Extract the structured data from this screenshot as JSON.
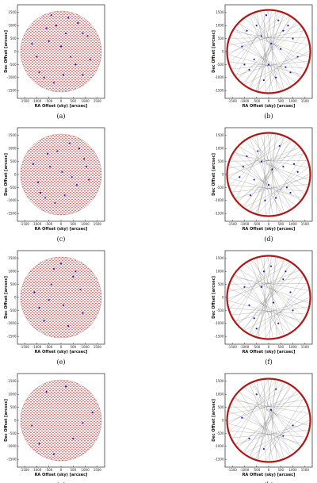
{
  "chart_data": [
    {
      "type": "scatter",
      "caption": "(a)",
      "xlabel": "RA Offset (sky) [arcsec]",
      "ylabel": "Dec Offset [arcsec]",
      "xlim": [
        -1800,
        1800
      ],
      "ylim": [
        -1800,
        1800
      ],
      "xticks": [
        -1500,
        -1000,
        -500,
        0,
        500,
        1000,
        1500
      ],
      "yticks": [
        -1500,
        -1000,
        -500,
        0,
        500,
        1000,
        1500
      ],
      "color": "#1a1acc",
      "style": "grid",
      "x": [
        -1200,
        -900,
        -600,
        -300,
        0,
        300,
        600,
        900,
        1200,
        -1000,
        -500,
        100,
        700,
        1100,
        -700,
        -200,
        400,
        900,
        -400,
        200
      ],
      "y": [
        300,
        -800,
        900,
        -1200,
        200,
        1300,
        -500,
        700,
        -300,
        -200,
        400,
        -900,
        1100,
        600,
        -1000,
        1000,
        -200,
        -900,
        1400,
        700
      ]
    },
    {
      "type": "scatter",
      "caption": "(b)",
      "xlabel": "RA Offset (sky) [arcsec]",
      "ylabel": "Dec Offset [arcsec]",
      "xlim": [
        -1800,
        1800
      ],
      "ylim": [
        -1800,
        1800
      ],
      "xticks": [
        -1500,
        -1000,
        -500,
        0,
        500,
        1000,
        1500
      ],
      "yticks": [
        -1500,
        -1000,
        -500,
        0,
        500,
        1000,
        1500
      ],
      "color": "#1a1acc",
      "style": "ring",
      "x": [
        -1100,
        -800,
        -500,
        -200,
        100,
        400,
        700,
        1000,
        1200,
        -900,
        -300,
        300,
        800,
        -600,
        0,
        500,
        -1000,
        900,
        -100,
        600
      ],
      "y": [
        200,
        -700,
        1000,
        -1100,
        300,
        1200,
        -600,
        500,
        -200,
        800,
        600,
        -1000,
        1000,
        -300,
        -500,
        100,
        -500,
        -800,
        1400,
        800
      ]
    },
    {
      "type": "scatter",
      "caption": "(c)",
      "xlabel": "RA Offset (sky) [arcsec]",
      "ylabel": "Dec Offset [arcsec]",
      "xlim": [
        -1800,
        1800
      ],
      "ylim": [
        -1800,
        1800
      ],
      "xticks": [
        -1500,
        -1000,
        -500,
        0,
        500,
        1000,
        1500
      ],
      "yticks": [
        -1500,
        -1000,
        -500,
        0,
        500,
        1000,
        1500
      ],
      "color": "#1a1acc",
      "style": "grid",
      "x": [
        -1150,
        -850,
        -550,
        -250,
        50,
        350,
        650,
        950,
        1150,
        -950,
        -450,
        150,
        750,
        -650,
        -150,
        450,
        1050
      ],
      "y": [
        400,
        -700,
        800,
        -1100,
        100,
        1200,
        -400,
        600,
        -200,
        -300,
        300,
        -800,
        1000,
        -900,
        900,
        -100,
        300
      ]
    },
    {
      "type": "scatter",
      "caption": "(d)",
      "xlabel": "RA Offset (sky) [arcsec]",
      "ylabel": "Dec Offset [arcsec]",
      "xlim": [
        -1800,
        1800
      ],
      "ylim": [
        -1800,
        1800
      ],
      "xticks": [
        -1500,
        -1000,
        -500,
        0,
        500,
        1000,
        1500
      ],
      "yticks": [
        -1500,
        -1000,
        -500,
        0,
        500,
        1000,
        1500
      ],
      "color": "#1a1acc",
      "style": "ring",
      "x": [
        -1050,
        -750,
        -450,
        -150,
        150,
        450,
        750,
        1050,
        -900,
        -300,
        300,
        900,
        -600,
        0,
        600,
        -1200,
        1200
      ],
      "y": [
        300,
        -800,
        900,
        -1000,
        200,
        1100,
        -500,
        400,
        700,
        500,
        -900,
        -700,
        -200,
        -400,
        300,
        -100,
        100
      ]
    },
    {
      "type": "scatter",
      "caption": "(e)",
      "xlabel": "RA Offset (sky) [arcsec]",
      "ylabel": "Dec Offset [arcsec]",
      "xlim": [
        -1800,
        1800
      ],
      "ylim": [
        -1800,
        1800
      ],
      "xticks": [
        -1500,
        -1000,
        -500,
        0,
        500,
        1000,
        1500
      ],
      "yticks": [
        -1500,
        -1000,
        -500,
        0,
        500,
        1000,
        1500
      ],
      "color": "#1a1acc",
      "style": "grid",
      "x": [
        -1100,
        -700,
        -300,
        100,
        500,
        900,
        -900,
        -400,
        300,
        800,
        -500,
        0,
        600
      ],
      "y": [
        200,
        -900,
        1100,
        -300,
        800,
        -600,
        -400,
        500,
        -1100,
        300,
        -100,
        1300,
        1000
      ]
    },
    {
      "type": "scatter",
      "caption": "(f)",
      "xlabel": "RA Offset (sky) [arcsec]",
      "ylabel": "Dec Offset [arcsec]",
      "xlim": [
        -1800,
        1800
      ],
      "ylim": [
        -1800,
        1800
      ],
      "xticks": [
        -1500,
        -1000,
        -500,
        0,
        500,
        1000,
        1500
      ],
      "yticks": [
        -1500,
        -1000,
        -500,
        0,
        500,
        1000,
        1500
      ],
      "color": "#1a1acc",
      "style": "ring",
      "x": [
        -1000,
        -600,
        -200,
        200,
        600,
        1000,
        -800,
        -300,
        400,
        900,
        -500,
        100,
        700
      ],
      "y": [
        400,
        -800,
        1000,
        -200,
        700,
        -500,
        -300,
        400,
        -1000,
        200,
        -1200,
        1200,
        1000
      ]
    },
    {
      "type": "scatter",
      "caption": "(g)",
      "xlabel": "RA Offset (sky) [arcsec]",
      "ylabel": "Dec Offset [arcsec]",
      "xlim": [
        -1800,
        1800
      ],
      "ylim": [
        -1800,
        1800
      ],
      "xticks": [
        -1500,
        -1000,
        -500,
        0,
        500,
        1000,
        1500
      ],
      "yticks": [
        -1500,
        -1000,
        -500,
        0,
        500,
        1000,
        1500
      ],
      "color": "#1a1acc",
      "style": "grid",
      "x": [
        -1200,
        -600,
        200,
        900,
        -300,
        500,
        1300,
        -900
      ],
      "y": [
        -200,
        1100,
        1300,
        -100,
        -1300,
        -700,
        300,
        -900
      ]
    },
    {
      "type": "scatter",
      "caption": "(h)",
      "xlabel": "RA Offset (sky) [arcsec]",
      "ylabel": "Dec Offset [arcsec]",
      "xlim": [
        -1800,
        1800
      ],
      "ylim": [
        -1800,
        1800
      ],
      "xticks": [
        -1500,
        -1000,
        -500,
        0,
        500,
        1000,
        1500
      ],
      "yticks": [
        -1500,
        -1000,
        -500,
        0,
        500,
        1000,
        1500
      ],
      "color": "#1a1acc",
      "style": "ring",
      "x": [
        -1100,
        -500,
        300,
        1000,
        -200,
        600,
        -800,
        100
      ],
      "y": [
        100,
        1000,
        1200,
        -200,
        -1100,
        -600,
        -700,
        400
      ]
    }
  ]
}
